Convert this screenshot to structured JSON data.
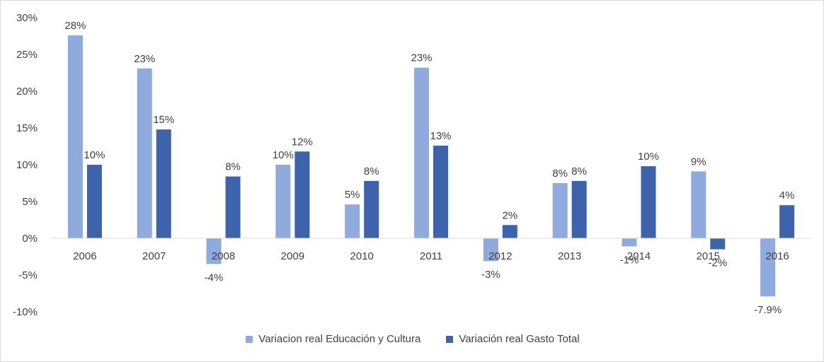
{
  "chart_data": {
    "type": "bar",
    "categories": [
      "2006",
      "2007",
      "2008",
      "2009",
      "2010",
      "2011",
      "2012",
      "2013",
      "2014",
      "2015",
      "2016"
    ],
    "series": [
      {
        "name": "Variacion real Educación y Cultura",
        "color": "#8faadc",
        "values": [
          27.6,
          23.1,
          -3.5,
          10.0,
          4.6,
          23.2,
          -3.1,
          7.5,
          -1.1,
          9.1,
          -7.9
        ],
        "labels": [
          "28%",
          "23%",
          "-4%",
          "10%",
          "5%",
          "23%",
          "-3%",
          "8%",
          "-1%",
          "9%",
          "-7.9%"
        ]
      },
      {
        "name": "Variación real Gasto Total",
        "color": "#3c63ac",
        "values": [
          10.0,
          14.8,
          8.4,
          11.8,
          7.8,
          12.6,
          1.8,
          7.8,
          9.8,
          -1.5,
          4.5
        ],
        "labels": [
          "10%",
          "15%",
          "8%",
          "12%",
          "8%",
          "13%",
          "2%",
          "8%",
          "10%",
          "-2%",
          "4%"
        ]
      }
    ],
    "y_ticks": [
      "-10%",
      "-5%",
      "0%",
      "5%",
      "10%",
      "15%",
      "20%",
      "25%",
      "30%"
    ],
    "ylim": [
      -10,
      30
    ],
    "legend_position": "bottom",
    "grid": false
  }
}
